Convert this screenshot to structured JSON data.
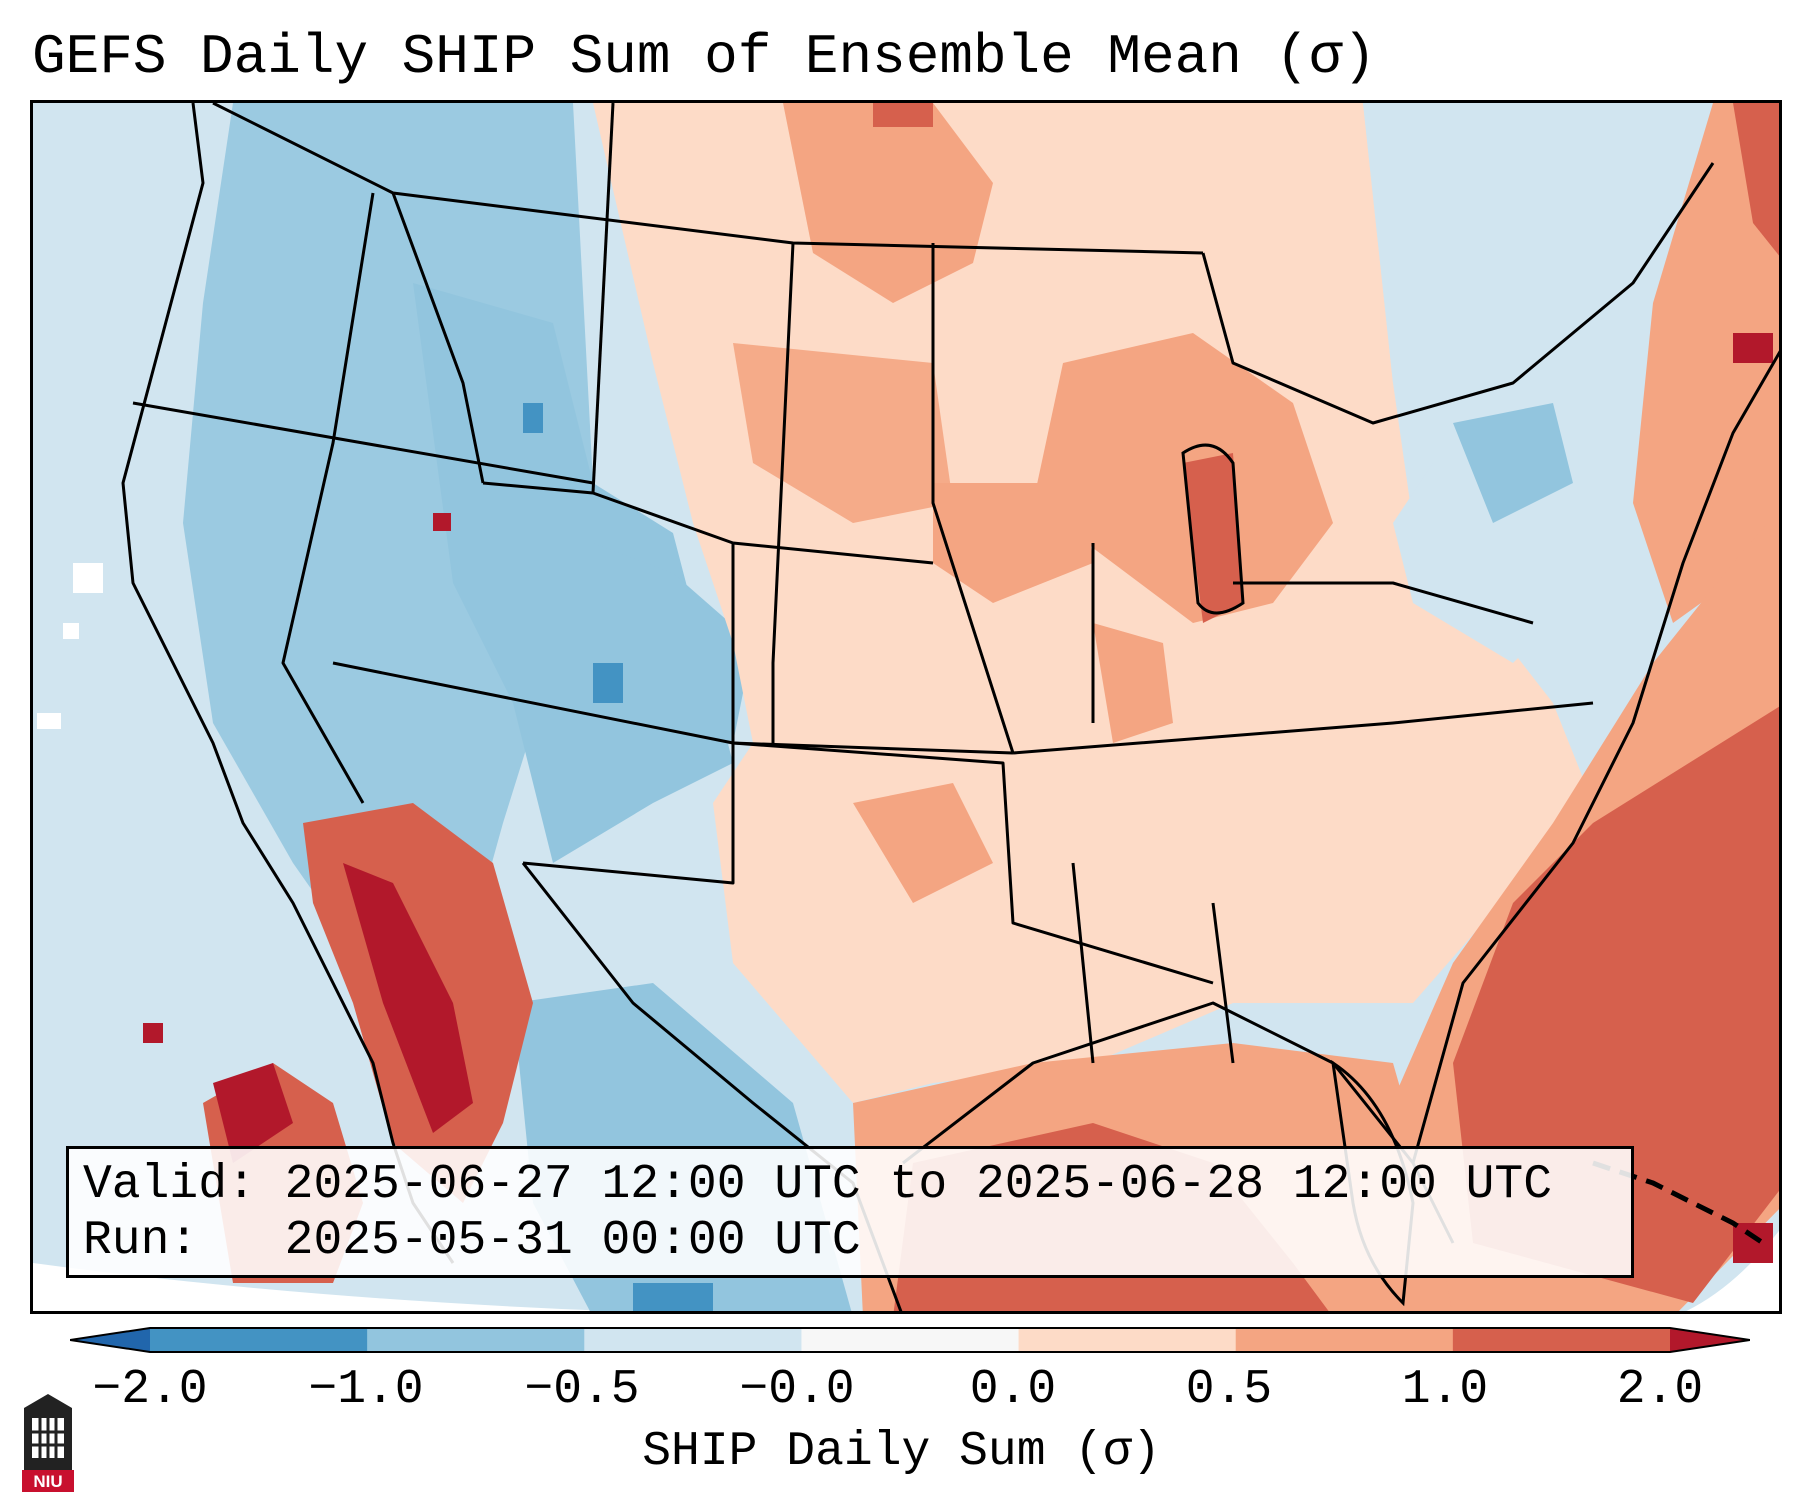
{
  "title": "GEFS Daily SHIP Sum of Ensemble Mean (σ)",
  "info": {
    "valid": "Valid: 2025-06-27 12:00 UTC to 2025-06-28 12:00 UTC",
    "run": "Run:   2025-05-31 00:00 UTC"
  },
  "colorbar": {
    "label": "SHIP Daily Sum (σ)",
    "ticks": [
      "−2.0",
      "−1.0",
      "−0.5",
      "−0.0",
      "0.0",
      "0.5",
      "1.0",
      "2.0"
    ],
    "colors": [
      "#2166ac",
      "#4393c3",
      "#92c5de",
      "#d1e5f0",
      "#f7f7f7",
      "#fddbc7",
      "#f4a582",
      "#d6604d",
      "#b2182b"
    ]
  },
  "logo": {
    "text": "NIU"
  }
}
